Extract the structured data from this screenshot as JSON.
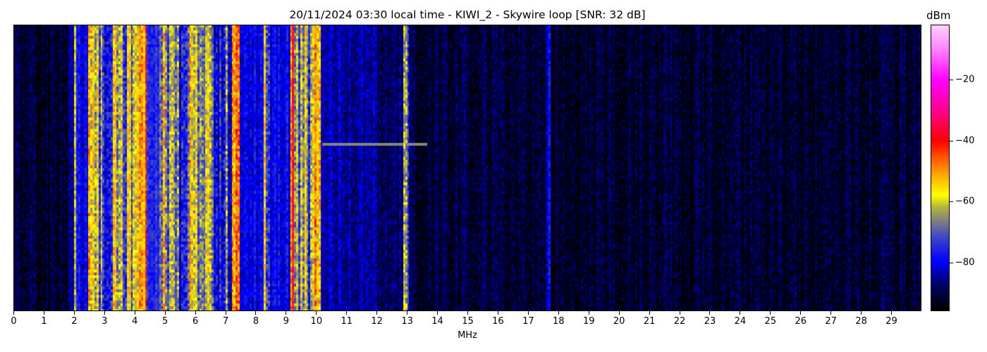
{
  "chart_data": {
    "type": "heatmap",
    "title": "20/11/2024 03:30 local time - KIWI_2 - Skywire loop [SNR: 32 dB]",
    "xlabel": "MHz",
    "ylabel": "",
    "xlim": [
      0,
      30
    ],
    "x_ticks": [
      0,
      1,
      2,
      3,
      4,
      5,
      6,
      7,
      8,
      9,
      10,
      11,
      12,
      13,
      14,
      15,
      16,
      17,
      18,
      19,
      20,
      21,
      22,
      23,
      24,
      25,
      26,
      27,
      28,
      29
    ],
    "colorbar": {
      "label": "dBm",
      "range": [
        -96,
        -2
      ],
      "ticks": [
        -20,
        -40,
        -60,
        -80
      ],
      "colormap": [
        [
          -96,
          "#000000"
        ],
        [
          -88,
          "#000060"
        ],
        [
          -80,
          "#0000ff"
        ],
        [
          -72,
          "#3c46c8"
        ],
        [
          -67,
          "#7a7a8a"
        ],
        [
          -62,
          "#b4b43c"
        ],
        [
          -58,
          "#ffff00"
        ],
        [
          -50,
          "#ff9600"
        ],
        [
          -40,
          "#ff0000"
        ],
        [
          -30,
          "#ff0090"
        ],
        [
          -20,
          "#ff00ff"
        ],
        [
          -10,
          "#ff80ff"
        ],
        [
          -2,
          "#ffd0ff"
        ]
      ]
    },
    "spectrum_profile_dbm": [
      [
        0,
        1.8,
        -92
      ],
      [
        1.8,
        2.0,
        -86
      ],
      [
        2.0,
        2.1,
        -62
      ],
      [
        2.1,
        2.45,
        -80
      ],
      [
        2.45,
        2.8,
        -59
      ],
      [
        2.8,
        3.3,
        -72
      ],
      [
        3.3,
        3.7,
        -63
      ],
      [
        3.7,
        4.0,
        -66
      ],
      [
        4.0,
        4.4,
        -50
      ],
      [
        4.4,
        4.8,
        -75
      ],
      [
        4.8,
        5.2,
        -63
      ],
      [
        5.2,
        5.8,
        -72
      ],
      [
        5.8,
        6.2,
        -61
      ],
      [
        6.2,
        6.6,
        -66
      ],
      [
        6.6,
        7.2,
        -74
      ],
      [
        7.2,
        7.5,
        -44
      ],
      [
        7.5,
        8.3,
        -80
      ],
      [
        8.3,
        8.5,
        -66
      ],
      [
        8.5,
        9.15,
        -80
      ],
      [
        9.15,
        9.25,
        -45
      ],
      [
        9.25,
        9.95,
        -66
      ],
      [
        9.95,
        10.15,
        -57
      ],
      [
        10.15,
        12.0,
        -84
      ],
      [
        12.0,
        12.9,
        -88
      ],
      [
        12.9,
        13.05,
        -72
      ],
      [
        13.05,
        17.6,
        -91
      ],
      [
        17.6,
        17.75,
        -80
      ],
      [
        17.75,
        30,
        -92
      ]
    ]
  }
}
